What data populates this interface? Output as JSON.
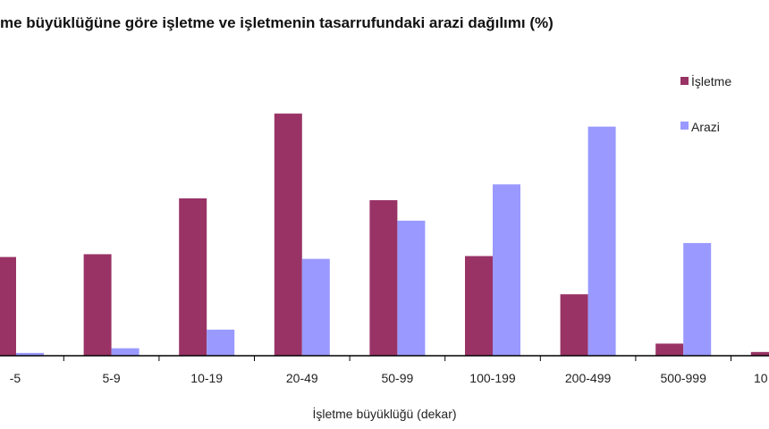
{
  "chart_data": {
    "type": "bar",
    "title": "me büyüklüğüne göre işletme ve işletmenin tasarrufundaki  arazi dağılımı (%)",
    "xlabel": "İşletme büyüklüğü (dekar)",
    "ylabel": "",
    "categories": [
      "-5",
      "5-9",
      "10-19",
      "20-49",
      "50-99",
      "100-199",
      "200-499",
      "500-999",
      "10"
    ],
    "series": [
      {
        "name": "İşletme",
        "color": "#993366",
        "values": [
          10.6,
          10.9,
          16.9,
          26.0,
          16.7,
          10.7,
          6.6,
          1.3,
          0.4
        ]
      },
      {
        "name": "Arazi",
        "color": "#9999FF",
        "values": [
          0.3,
          0.8,
          2.8,
          10.4,
          14.5,
          18.4,
          24.6,
          12.1,
          null
        ]
      }
    ],
    "ylim": [
      0,
      31
    ],
    "grid": false,
    "legend": "top-right"
  }
}
